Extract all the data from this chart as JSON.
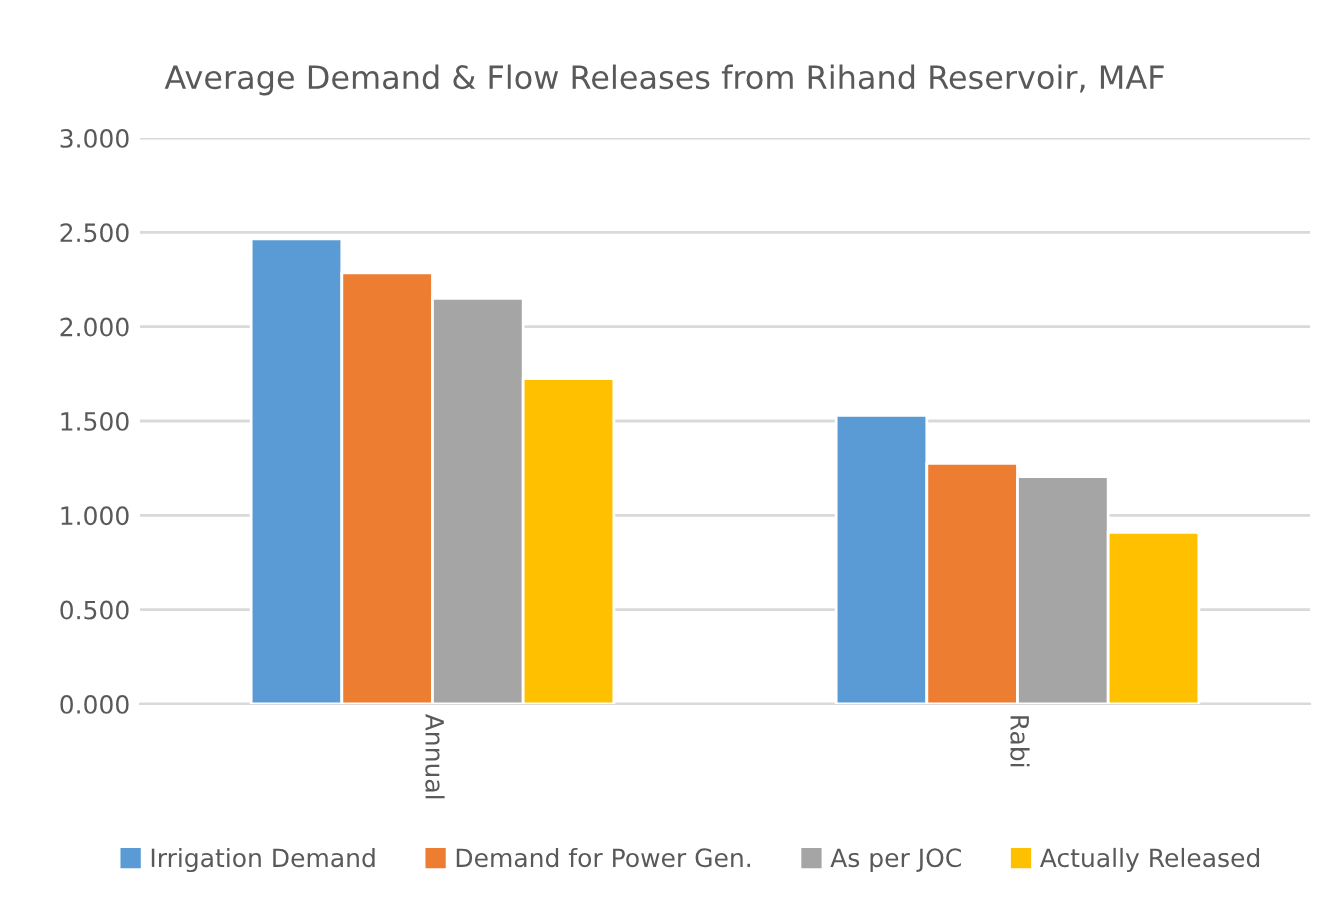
{
  "chart_data": {
    "type": "bar",
    "title": "Average Demand & Flow Releases from Rihand Reservoir, MAF",
    "categories": [
      "Annual",
      "Rabi"
    ],
    "series": [
      {
        "name": "Irrigation Demand",
        "color": "#5b9bd5",
        "values": [
          2.465,
          1.53
        ]
      },
      {
        "name": "Demand for Power Gen.",
        "color": "#ed7d31",
        "values": [
          2.285,
          1.275
        ]
      },
      {
        "name": "As per JOC",
        "color": "#a5a5a5",
        "values": [
          2.15,
          1.205
        ]
      },
      {
        "name": "Actually Released",
        "color": "#ffc000",
        "values": [
          1.725,
          0.91
        ]
      }
    ],
    "ylim": [
      0,
      3
    ],
    "yticks": [
      {
        "value": 0,
        "label": "0.000"
      },
      {
        "value": 0.5,
        "label": "0.500"
      },
      {
        "value": 1,
        "label": "1.000"
      },
      {
        "value": 1.5,
        "label": "1.500"
      },
      {
        "value": 2,
        "label": "2.000"
      },
      {
        "value": 2.5,
        "label": "2.500"
      },
      {
        "value": 3,
        "label": "3.000"
      }
    ],
    "grid": "y",
    "legend": "bottom"
  }
}
